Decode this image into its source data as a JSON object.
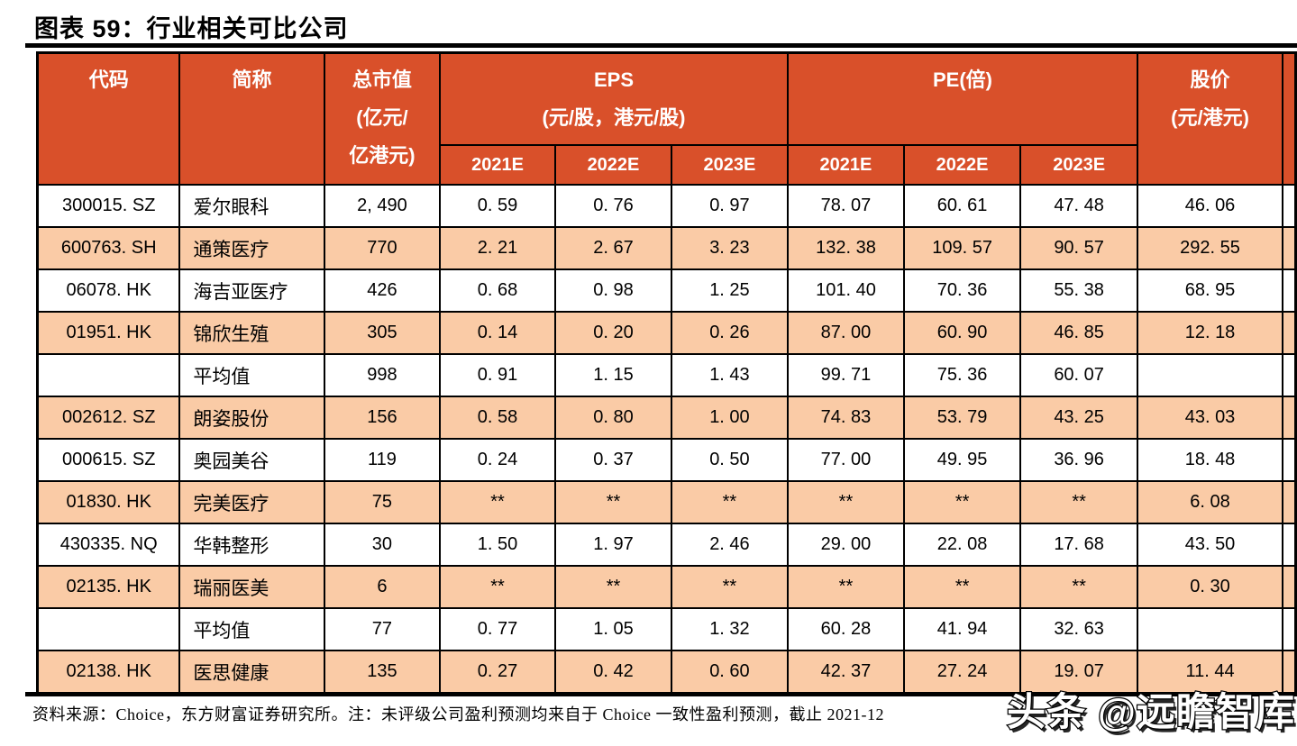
{
  "title": "图表 59：行业相关可比公司",
  "colors": {
    "header_bg": "#D9502A",
    "row_highlight": "#FACBA6",
    "border": "#000000"
  },
  "table": {
    "header": {
      "code": "代码",
      "name": "简称",
      "cap_lines": [
        "总市值",
        "(亿元/",
        "亿港元)"
      ],
      "eps_title": "EPS",
      "eps_sub": "(元/股，港元/股)",
      "pe_title": "PE(倍)",
      "years": [
        "2021E",
        "2022E",
        "2023E"
      ],
      "price_lines": [
        "股价",
        "(元/港元)"
      ]
    },
    "rows": [
      {
        "code": "300015. SZ",
        "name": "爱尔眼科",
        "cap": "2, 490",
        "eps": [
          "0. 59",
          "0. 76",
          "0. 97"
        ],
        "pe": [
          "78. 07",
          "60. 61",
          "47. 48"
        ],
        "price": "46. 06",
        "highlight": false
      },
      {
        "code": "600763. SH",
        "name": "通策医疗",
        "cap": "770",
        "eps": [
          "2. 21",
          "2. 67",
          "3. 23"
        ],
        "pe": [
          "132. 38",
          "109. 57",
          "90. 57"
        ],
        "price": "292. 55",
        "highlight": true
      },
      {
        "code": "06078. HK",
        "name": "海吉亚医疗",
        "cap": "426",
        "eps": [
          "0. 68",
          "0. 98",
          "1. 25"
        ],
        "pe": [
          "101. 40",
          "70. 36",
          "55. 38"
        ],
        "price": "68. 95",
        "highlight": false
      },
      {
        "code": "01951. HK",
        "name": "锦欣生殖",
        "cap": "305",
        "eps": [
          "0. 14",
          "0. 20",
          "0. 26"
        ],
        "pe": [
          "87. 00",
          "60. 90",
          "46. 85"
        ],
        "price": "12. 18",
        "highlight": true
      },
      {
        "code": "",
        "name": "平均值",
        "cap": "998",
        "eps": [
          "0. 91",
          "1. 15",
          "1. 43"
        ],
        "pe": [
          "99. 71",
          "75. 36",
          "60. 07"
        ],
        "price": "",
        "highlight": false
      },
      {
        "code": "002612. SZ",
        "name": "朗姿股份",
        "cap": "156",
        "eps": [
          "0. 58",
          "0. 80",
          "1. 00"
        ],
        "pe": [
          "74. 83",
          "53. 79",
          "43. 25"
        ],
        "price": "43. 03",
        "highlight": true
      },
      {
        "code": "000615. SZ",
        "name": "奥园美谷",
        "cap": "119",
        "eps": [
          "0. 24",
          "0. 37",
          "0. 50"
        ],
        "pe": [
          "77. 00",
          "49. 95",
          "36. 96"
        ],
        "price": "18. 48",
        "highlight": false
      },
      {
        "code": "01830. HK",
        "name": "完美医疗",
        "cap": "75",
        "eps": [
          "**",
          "**",
          "**"
        ],
        "pe": [
          "**",
          "**",
          "**"
        ],
        "price": "6. 08",
        "highlight": true
      },
      {
        "code": "430335. NQ",
        "name": "华韩整形",
        "cap": "30",
        "eps": [
          "1. 50",
          "1. 97",
          "2. 46"
        ],
        "pe": [
          "29. 00",
          "22. 08",
          "17. 68"
        ],
        "price": "43. 50",
        "highlight": false
      },
      {
        "code": "02135. HK",
        "name": "瑞丽医美",
        "cap": "6",
        "eps": [
          "**",
          "**",
          "**"
        ],
        "pe": [
          "**",
          "**",
          "**"
        ],
        "price": "0. 30",
        "highlight": true
      },
      {
        "code": "",
        "name": "平均值",
        "cap": "77",
        "eps": [
          "0. 77",
          "1. 05",
          "1. 32"
        ],
        "pe": [
          "60. 28",
          "41. 94",
          "32. 63"
        ],
        "price": "",
        "highlight": false
      },
      {
        "code": "02138. HK",
        "name": "医思健康",
        "cap": "135",
        "eps": [
          "0. 27",
          "0. 42",
          "0. 60"
        ],
        "pe": [
          "42. 37",
          "27. 24",
          "19. 07"
        ],
        "price": "11. 44",
        "highlight": true
      }
    ]
  },
  "footer": {
    "source_note": "资料来源：Choice，东方财富证券研究所。注：未评级公司盈利预测均来自于 Choice 一致性盈利预测，截止 2021-12"
  },
  "watermark": "头条 @远瞻智库"
}
